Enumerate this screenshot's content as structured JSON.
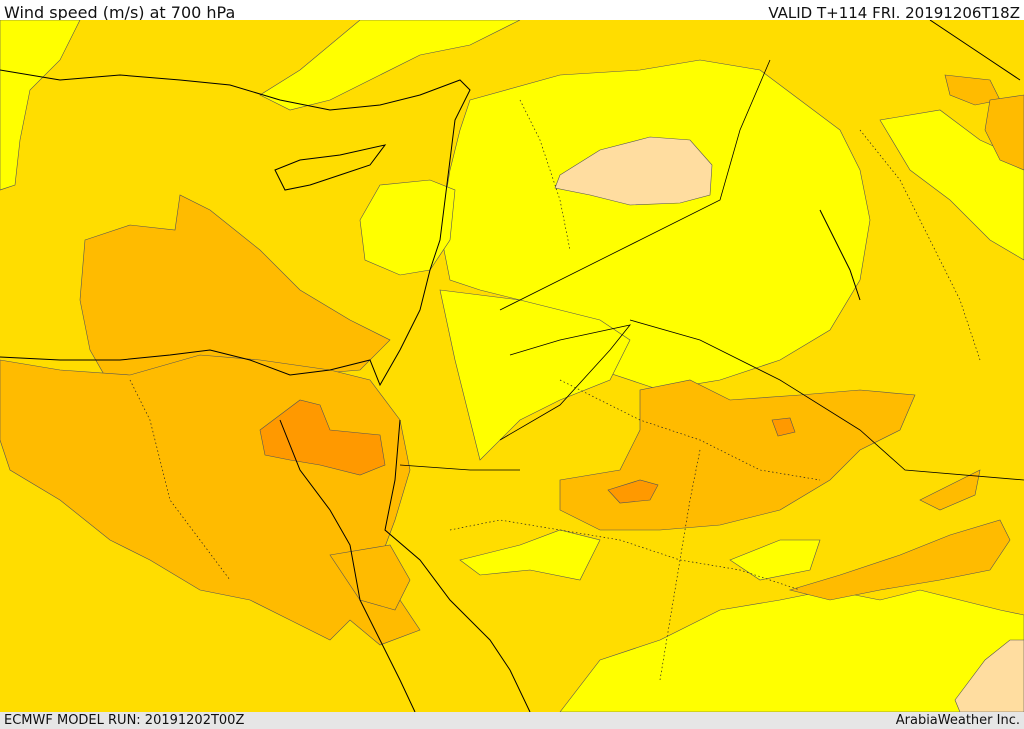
{
  "header": {
    "title": "Wind speed (m/s) at 700 hPa",
    "valid": "VALID T+114 FRI. 20191206T18Z"
  },
  "footer": {
    "model_run": "ECMWF MODEL RUN: 20191202T00Z",
    "credit": "ArabiaWeather Inc."
  },
  "colors": {
    "band_low": "#ffff00",
    "band_mid": "#ffdd00",
    "band_high": "#ffbb00",
    "band_higher": "#ff9900",
    "band_peach": "#ffdda0",
    "contour_line": "#555555",
    "coastline": "#000000"
  }
}
